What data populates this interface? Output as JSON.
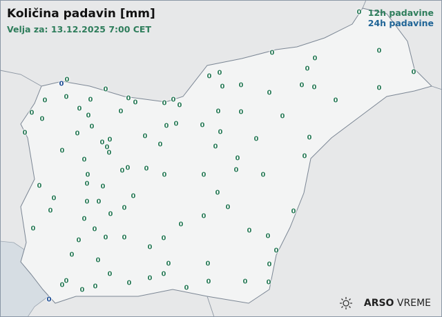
{
  "title": "Količina padavin [mm]",
  "valid_for": "Velja za: 13.12.2025 7:00 CET",
  "legend": {
    "item_12h": "12h padavine",
    "item_24h": "24h padavine",
    "color_12h": "#2e7d5b",
    "color_24h": "#1f6496"
  },
  "logo": {
    "brand": "ARSO",
    "product": "VREME",
    "icon": "sun-icon"
  },
  "stations_12h_values": [
    "0",
    "0",
    "0",
    "0",
    "0",
    "0",
    "0",
    "0",
    "0",
    "0",
    "0",
    "0",
    "0",
    "0",
    "0",
    "0",
    "0",
    "0",
    "0",
    "0",
    "0",
    "0",
    "0",
    "0",
    "0",
    "0",
    "0",
    "0",
    "0",
    "0",
    "0",
    "0",
    "0",
    "0",
    "0",
    "0",
    "0",
    "0",
    "0",
    "0",
    "0",
    "0",
    "0",
    "0",
    "0",
    "0",
    "0",
    "0",
    "0",
    "0",
    "0",
    "0",
    "0",
    "0",
    "0",
    "0",
    "0",
    "0",
    "0",
    "0",
    "0",
    "0",
    "0",
    "0",
    "0",
    "0",
    "0",
    "0",
    "0",
    "0",
    "0",
    "0",
    "0",
    "0",
    "0",
    "0",
    "0",
    "0",
    "0",
    "0",
    "0",
    "0",
    "0",
    "0",
    "0",
    "0",
    "0",
    "0",
    "0",
    "0",
    "0",
    "0",
    "0",
    "0",
    "0",
    "0",
    "0",
    "0",
    "0",
    "0",
    "0",
    "0",
    "0",
    "0",
    "0",
    "0",
    "0",
    "0"
  ],
  "stations_24h_values": [
    "0",
    "0"
  ]
}
